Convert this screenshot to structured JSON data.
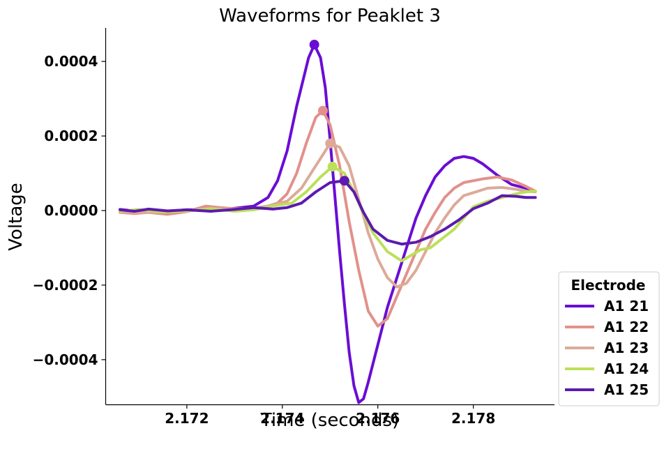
{
  "chart_data": {
    "type": "line",
    "title": "Waveforms for Peaklet 3",
    "xlabel": "Time (seconds)",
    "ylabel": "Voltage",
    "xlim": [
      2.1703,
      2.1797
    ],
    "ylim": [
      -0.00052,
      0.00049
    ],
    "xticks": [
      2.172,
      2.174,
      2.176,
      2.178
    ],
    "xtick_labels": [
      "2.172",
      "2.174",
      "2.176",
      "2.178"
    ],
    "yticks": [
      0.0004,
      0.0002,
      0.0,
      -0.0002,
      -0.0004
    ],
    "ytick_labels": [
      "0.0004",
      "0.0002",
      "0.0000",
      "−0.0002",
      "−0.0004"
    ],
    "grid": false,
    "legend": {
      "title": "Electrode",
      "placement": "lower-right outside"
    },
    "series": [
      {
        "name": "A1 21",
        "color": "#6a0dd4",
        "peak": [
          2.17467,
          0.000445
        ],
        "points": [
          [
            2.1706,
            3e-06
          ],
          [
            2.1709,
            -1e-06
          ],
          [
            2.1712,
            3e-06
          ],
          [
            2.1716,
            -2e-06
          ],
          [
            2.172,
            2e-06
          ],
          [
            2.1725,
            2e-06
          ],
          [
            2.173,
            6e-06
          ],
          [
            2.1734,
            1.2e-05
          ],
          [
            2.1737,
            3.5e-05
          ],
          [
            2.1739,
            8e-05
          ],
          [
            2.1741,
            0.00016
          ],
          [
            2.1743,
            0.00028
          ],
          [
            2.17455,
            0.00041
          ],
          [
            2.17467,
            0.000445
          ],
          [
            2.1748,
            0.00041
          ],
          [
            2.1749,
            0.00033
          ],
          [
            2.175,
            0.00019
          ],
          [
            2.1751,
            4e-05
          ],
          [
            2.1752,
            -0.00011
          ],
          [
            2.1753,
            -0.00025
          ],
          [
            2.1754,
            -0.00038
          ],
          [
            2.1755,
            -0.00047
          ],
          [
            2.1756,
            -0.000515
          ],
          [
            2.1757,
            -0.000505
          ],
          [
            2.1758,
            -0.00046
          ],
          [
            2.176,
            -0.00036
          ],
          [
            2.1762,
            -0.00026
          ],
          [
            2.1764,
            -0.00018
          ],
          [
            2.1766,
            -0.0001
          ],
          [
            2.1768,
            -2e-05
          ],
          [
            2.177,
            4e-05
          ],
          [
            2.1772,
            9e-05
          ],
          [
            2.1774,
            0.00012
          ],
          [
            2.1776,
            0.00014
          ],
          [
            2.1778,
            0.000145
          ],
          [
            2.178,
            0.00014
          ],
          [
            2.1782,
            0.000125
          ],
          [
            2.1785,
            9.5e-05
          ],
          [
            2.1788,
            7e-05
          ],
          [
            2.1791,
            6e-05
          ],
          [
            2.1793,
            5.2e-05
          ]
        ]
      },
      {
        "name": "A1 22",
        "color": "#e2918a",
        "peak": [
          2.17485,
          0.000268
        ],
        "points": [
          [
            2.1706,
            -5e-06
          ],
          [
            2.1709,
            -8e-06
          ],
          [
            2.1712,
            -5e-06
          ],
          [
            2.1716,
            -1e-05
          ],
          [
            2.172,
            -3e-06
          ],
          [
            2.1724,
            1.2e-05
          ],
          [
            2.1727,
            8e-06
          ],
          [
            2.173,
            5e-06
          ],
          [
            2.1734,
            6e-06
          ],
          [
            2.1737,
            1.2e-05
          ],
          [
            2.1739,
            2e-05
          ],
          [
            2.1741,
            4.5e-05
          ],
          [
            2.1743,
            0.0001
          ],
          [
            2.1745,
            0.00018
          ],
          [
            2.1747,
            0.00025
          ],
          [
            2.17485,
            0.000268
          ],
          [
            2.175,
            0.00023
          ],
          [
            2.1752,
            0.00012
          ],
          [
            2.1754,
            -3e-05
          ],
          [
            2.1756,
            -0.00016
          ],
          [
            2.1758,
            -0.00027
          ],
          [
            2.176,
            -0.00031
          ],
          [
            2.1762,
            -0.00029
          ],
          [
            2.1764,
            -0.00023
          ],
          [
            2.1766,
            -0.00017
          ],
          [
            2.1768,
            -0.00011
          ],
          [
            2.177,
            -5e-05
          ],
          [
            2.1772,
            -5e-06
          ],
          [
            2.1774,
            3.5e-05
          ],
          [
            2.1776,
            6e-05
          ],
          [
            2.1778,
            7.5e-05
          ],
          [
            2.178,
            8e-05
          ],
          [
            2.1782,
            8.5e-05
          ],
          [
            2.1785,
            9e-05
          ],
          [
            2.1788,
            8.2e-05
          ],
          [
            2.1791,
            6.5e-05
          ],
          [
            2.1793,
            5.2e-05
          ]
        ]
      },
      {
        "name": "A1 23",
        "color": "#dbab98",
        "peak": [
          2.175,
          0.00018
        ],
        "points": [
          [
            2.1706,
            -4e-06
          ],
          [
            2.171,
            -5e-06
          ],
          [
            2.1715,
            -4e-06
          ],
          [
            2.172,
            -2e-06
          ],
          [
            2.1725,
            6e-06
          ],
          [
            2.173,
            3e-06
          ],
          [
            2.1734,
            4e-06
          ],
          [
            2.1738,
            1.5e-05
          ],
          [
            2.1741,
            2.5e-05
          ],
          [
            2.1744,
            6e-05
          ],
          [
            2.1747,
            0.00012
          ],
          [
            2.175,
            0.00018
          ],
          [
            2.1752,
            0.00017
          ],
          [
            2.1754,
            0.00012
          ],
          [
            2.1756,
            3e-05
          ],
          [
            2.1758,
            -6e-05
          ],
          [
            2.176,
            -0.00013
          ],
          [
            2.1762,
            -0.00018
          ],
          [
            2.1764,
            -0.000205
          ],
          [
            2.1766,
            -0.000195
          ],
          [
            2.1768,
            -0.00016
          ],
          [
            2.177,
            -0.00011
          ],
          [
            2.1772,
            -6e-05
          ],
          [
            2.1774,
            -2e-05
          ],
          [
            2.1776,
            1.5e-05
          ],
          [
            2.1778,
            4e-05
          ],
          [
            2.178,
            4.8e-05
          ],
          [
            2.1783,
            6e-05
          ],
          [
            2.1786,
            6.2e-05
          ],
          [
            2.1789,
            5.7e-05
          ],
          [
            2.1791,
            5.2e-05
          ],
          [
            2.1793,
            5e-05
          ]
        ]
      },
      {
        "name": "A1 24",
        "color": "#bce05a",
        "peak": [
          2.17505,
          0.000118
        ],
        "points": [
          [
            2.1706,
            -2e-06
          ],
          [
            2.171,
            3e-06
          ],
          [
            2.1715,
            -4e-06
          ],
          [
            2.172,
            -1e-06
          ],
          [
            2.1725,
            5e-06
          ],
          [
            2.173,
            -2e-06
          ],
          [
            2.1734,
            2e-06
          ],
          [
            2.1738,
            1.2e-05
          ],
          [
            2.1742,
            2e-05
          ],
          [
            2.1745,
            5e-05
          ],
          [
            2.1748,
            9e-05
          ],
          [
            2.17505,
            0.000118
          ],
          [
            2.1753,
            0.0001
          ],
          [
            2.1755,
            5e-05
          ],
          [
            2.1757,
            -1e-05
          ],
          [
            2.1759,
            -6e-05
          ],
          [
            2.1762,
            -0.00011
          ],
          [
            2.1765,
            -0.000135
          ],
          [
            2.1767,
            -0.00012
          ],
          [
            2.1769,
            -0.000105
          ],
          [
            2.1771,
            -0.0001
          ],
          [
            2.1773,
            -8e-05
          ],
          [
            2.1776,
            -5e-05
          ],
          [
            2.1778,
            -2e-05
          ],
          [
            2.178,
            1e-05
          ],
          [
            2.1783,
            2.5e-05
          ],
          [
            2.1786,
            3.5e-05
          ],
          [
            2.1789,
            4.5e-05
          ],
          [
            2.1791,
            5e-05
          ],
          [
            2.1793,
            5.2e-05
          ]
        ]
      },
      {
        "name": "A1 25",
        "color": "#5c1ab0",
        "peak": [
          2.1753,
          8e-05
        ],
        "points": [
          [
            2.1706,
            2e-06
          ],
          [
            2.1709,
            -2e-06
          ],
          [
            2.1712,
            4e-06
          ],
          [
            2.1716,
            -1e-06
          ],
          [
            2.172,
            2e-06
          ],
          [
            2.1725,
            -2e-06
          ],
          [
            2.173,
            3e-06
          ],
          [
            2.1734,
            8e-06
          ],
          [
            2.1738,
            4e-06
          ],
          [
            2.1741,
            8e-06
          ],
          [
            2.1744,
            2e-05
          ],
          [
            2.1747,
            5e-05
          ],
          [
            2.175,
            7.5e-05
          ],
          [
            2.1753,
            8e-05
          ],
          [
            2.1755,
            5e-05
          ],
          [
            2.1757,
            -5e-06
          ],
          [
            2.1759,
            -5e-05
          ],
          [
            2.1762,
            -8e-05
          ],
          [
            2.1765,
            -9e-05
          ],
          [
            2.1768,
            -8.5e-05
          ],
          [
            2.1771,
            -7e-05
          ],
          [
            2.1774,
            -5e-05
          ],
          [
            2.1777,
            -2.5e-05
          ],
          [
            2.178,
            5e-06
          ],
          [
            2.1783,
            2e-05
          ],
          [
            2.1786,
            4e-05
          ],
          [
            2.1789,
            3.8e-05
          ],
          [
            2.1791,
            3.5e-05
          ],
          [
            2.1793,
            3.5e-05
          ]
        ]
      }
    ]
  }
}
